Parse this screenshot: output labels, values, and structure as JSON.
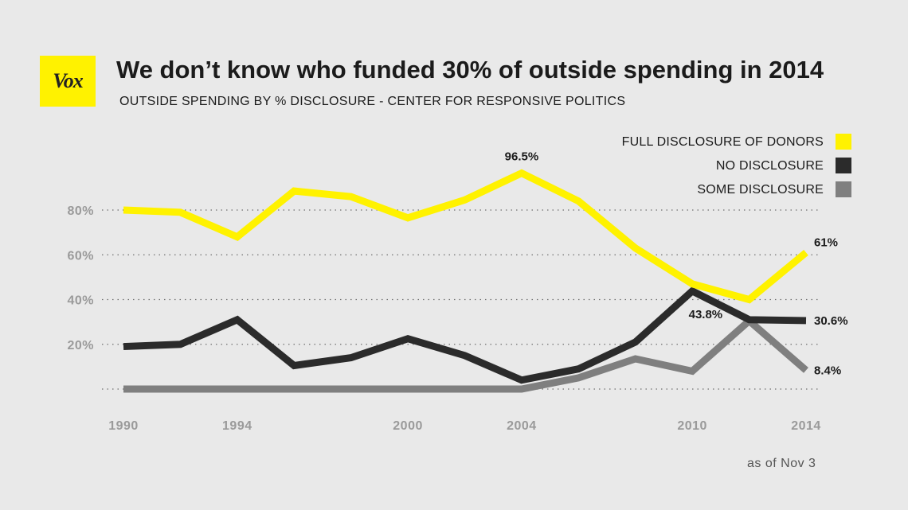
{
  "brand": {
    "logo_text": "Vox",
    "color": "#fff200"
  },
  "chart_data": {
    "type": "line",
    "title": "We don’t know who funded 30% of outside spending in 2014",
    "subtitle": "OUTSIDE SPENDING BY % DISCLOSURE - CENTER FOR RESPONSIVE POLITICS",
    "note": "as of Nov 3",
    "x": [
      1990,
      1992,
      1994,
      1996,
      1998,
      2000,
      2002,
      2004,
      2006,
      2008,
      2010,
      2012,
      2014
    ],
    "x_ticks": [
      "1990",
      "1994",
      "2000",
      "2004",
      "2010",
      "2014"
    ],
    "x_tick_values": [
      1990,
      1994,
      2000,
      2004,
      2010,
      2014
    ],
    "y_ticks": [
      "80%",
      "60%",
      "40%",
      "20%"
    ],
    "y_tick_values": [
      80,
      60,
      40,
      20
    ],
    "xlim": [
      1990,
      2014
    ],
    "ylim": [
      0,
      80
    ],
    "grid": "dotted horizontal",
    "legend_position": "top-right",
    "series": [
      {
        "name": "FULL DISCLOSURE OF DONORS",
        "color": "#fff200",
        "values": [
          80,
          79,
          68,
          88.5,
          86,
          76.5,
          84.5,
          96.5,
          84,
          63,
          47,
          40,
          61
        ]
      },
      {
        "name": "NO DISCLOSURE",
        "color": "#2b2b2b",
        "values": [
          19,
          20,
          31,
          10.5,
          14,
          22.5,
          15,
          4,
          9,
          21,
          43.8,
          31,
          30.6
        ]
      },
      {
        "name": "SOME DISCLOSURE",
        "color": "#7f7f7f",
        "values": [
          0,
          0,
          0,
          0,
          0,
          0,
          0,
          0,
          5,
          13.5,
          8,
          30.5,
          8.4
        ]
      }
    ],
    "data_labels": [
      {
        "text": "96.5%",
        "series": 0,
        "index": 7,
        "pos": "above"
      },
      {
        "text": "61%",
        "series": 0,
        "index": 12,
        "pos": "right"
      },
      {
        "text": "43.8%",
        "series": 1,
        "index": 10,
        "pos": "below"
      },
      {
        "text": "30.6%",
        "series": 1,
        "index": 12,
        "pos": "right"
      },
      {
        "text": "8.4%",
        "series": 2,
        "index": 12,
        "pos": "right"
      }
    ]
  }
}
